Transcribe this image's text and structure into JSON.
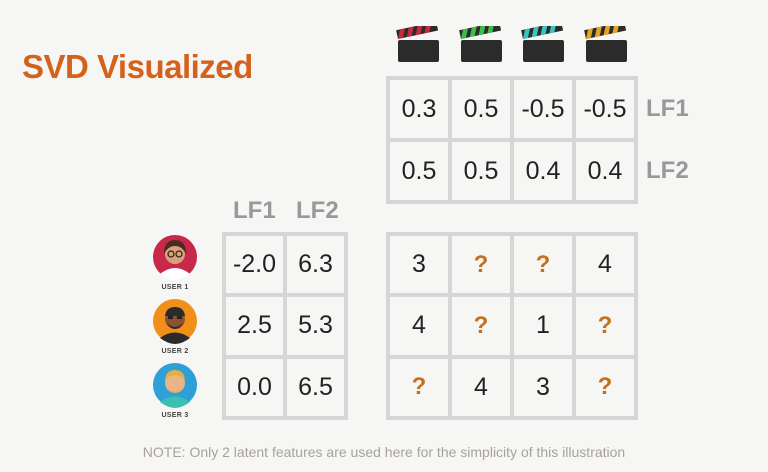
{
  "title": "SVD Visualized",
  "movies": [
    {
      "icon": "clapperboard-icon",
      "color": "#c8283c"
    },
    {
      "icon": "clapperboard-icon",
      "color": "#3bbf4a"
    },
    {
      "icon": "clapperboard-icon",
      "color": "#38c4c4"
    },
    {
      "icon": "clapperboard-icon",
      "color": "#e6a520"
    }
  ],
  "movie_factors": {
    "rows": [
      {
        "label": "LF1",
        "values": [
          "0.3",
          "0.5",
          "-0.5",
          "-0.5"
        ]
      },
      {
        "label": "LF2",
        "values": [
          "0.5",
          "0.5",
          "0.4",
          "0.4"
        ]
      }
    ]
  },
  "user_factors": {
    "headers": [
      "LF1",
      "LF2"
    ],
    "rows": [
      {
        "user": "USER 1",
        "values": [
          "-2.0",
          "6.3"
        ]
      },
      {
        "user": "USER 2",
        "values": [
          "2.5",
          "5.3"
        ]
      },
      {
        "user": "USER 3",
        "values": [
          "0.0",
          "6.5"
        ]
      }
    ]
  },
  "ratings": [
    [
      "3",
      "?",
      "?",
      "4"
    ],
    [
      "4",
      "?",
      "1",
      "?"
    ],
    [
      "?",
      "4",
      "3",
      "?"
    ]
  ],
  "note": "NOTE:  Only 2 latent features are used here for the simplicity of this illustration",
  "colors": {
    "title": "#d4621a",
    "question": "#c5701e",
    "label": "#999999"
  }
}
